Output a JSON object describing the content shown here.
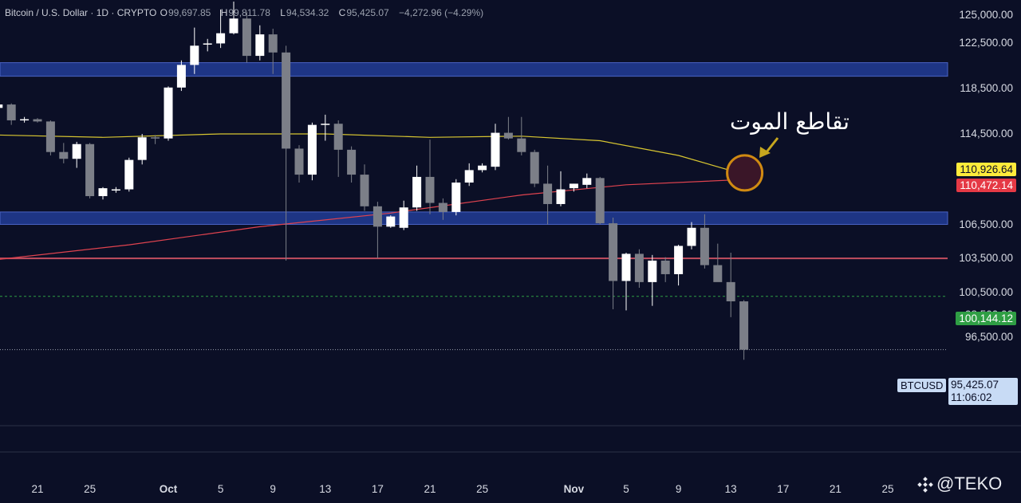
{
  "header": {
    "title": "Bitcoin / U.S. Dollar · 1D · CRYPTO",
    "o_label": "O",
    "o": "99,697.85",
    "h_label": "H",
    "h": "99,811.78",
    "l_label": "L",
    "l": "94,534.32",
    "c_label": "C",
    "c": "95,425.07",
    "change": "−4,272.96 (−4.29%)"
  },
  "annotation": {
    "text": "تقاطع الموت"
  },
  "price_tags": {
    "ma50": "110,926.64",
    "ma200": "110,472.14",
    "level": "100,144.12",
    "symbol": "BTCUSD",
    "last": "95,425.07",
    "countdown": "11:06:02"
  },
  "watermark": {
    "text": "@TEKO",
    "icon": "diamond-logo-icon"
  },
  "colors": {
    "background": "#0b0f26",
    "candle_up": "#ffffff",
    "candle_down": "#7c7f88",
    "zone": "#1e3585",
    "ma50": "#d8c631",
    "ma200": "#e0434f",
    "ma50_tag": "#ffeb3b",
    "ma200_tag": "#e53945",
    "level_tag": "#2f9e44",
    "cross_circle": "#d08a12"
  },
  "chart_data": {
    "type": "candlestick",
    "title": "Bitcoin / U.S. Dollar · 1D · CRYPTO",
    "y_ticks": [
      125000,
      122500,
      118500,
      114500,
      106500,
      103500,
      100500,
      98500,
      96500
    ],
    "y_tick_labels": [
      "125,000.00",
      "122,500.00",
      "118,500.00",
      "114,500.00",
      "106,500.00",
      "103,500.00",
      "100,500.00",
      "98,500.00",
      "96,500.00"
    ],
    "x_ticks": [
      {
        "label": "21",
        "date": "2025-09-21"
      },
      {
        "label": "25",
        "date": "2025-09-25"
      },
      {
        "label": "Oct",
        "date": "2025-10-01"
      },
      {
        "label": "5",
        "date": "2025-10-05"
      },
      {
        "label": "9",
        "date": "2025-10-09"
      },
      {
        "label": "13",
        "date": "2025-10-13"
      },
      {
        "label": "17",
        "date": "2025-10-17"
      },
      {
        "label": "21",
        "date": "2025-10-21"
      },
      {
        "label": "25",
        "date": "2025-10-25"
      },
      {
        "label": "Nov",
        "date": "2025-11-01"
      },
      {
        "label": "5",
        "date": "2025-11-05"
      },
      {
        "label": "9",
        "date": "2025-11-09"
      },
      {
        "label": "13",
        "date": "2025-11-13"
      },
      {
        "label": "17",
        "date": "2025-11-17"
      },
      {
        "label": "21",
        "date": "2025-11-21"
      },
      {
        "label": "25",
        "date": "2025-11-25"
      }
    ],
    "candles": [
      {
        "date": "2025-09-18",
        "o": 116800,
        "h": 117300,
        "l": 116100,
        "c": 117100
      },
      {
        "date": "2025-09-19",
        "o": 117100,
        "h": 117200,
        "l": 115300,
        "c": 115700
      },
      {
        "date": "2025-09-20",
        "o": 115700,
        "h": 116000,
        "l": 115500,
        "c": 115800
      },
      {
        "date": "2025-09-21",
        "o": 115800,
        "h": 115900,
        "l": 115500,
        "c": 115600
      },
      {
        "date": "2025-09-22",
        "o": 115600,
        "h": 115700,
        "l": 112600,
        "c": 112900
      },
      {
        "date": "2025-09-23",
        "o": 112900,
        "h": 113700,
        "l": 111900,
        "c": 112300
      },
      {
        "date": "2025-09-24",
        "o": 112300,
        "h": 113800,
        "l": 111500,
        "c": 113600
      },
      {
        "date": "2025-09-25",
        "o": 113600,
        "h": 113700,
        "l": 108800,
        "c": 109000
      },
      {
        "date": "2025-09-26",
        "o": 109000,
        "h": 109800,
        "l": 108700,
        "c": 109700
      },
      {
        "date": "2025-09-27",
        "o": 109500,
        "h": 109800,
        "l": 109300,
        "c": 109600
      },
      {
        "date": "2025-09-28",
        "o": 109600,
        "h": 112400,
        "l": 109400,
        "c": 112200
      },
      {
        "date": "2025-09-29",
        "o": 112200,
        "h": 114500,
        "l": 111800,
        "c": 114200
      },
      {
        "date": "2025-09-30",
        "o": 114200,
        "h": 114400,
        "l": 113600,
        "c": 114100
      },
      {
        "date": "2025-10-01",
        "o": 114100,
        "h": 118700,
        "l": 113900,
        "c": 118600
      },
      {
        "date": "2025-10-02",
        "o": 118600,
        "h": 121000,
        "l": 118300,
        "c": 120600
      },
      {
        "date": "2025-10-03",
        "o": 120600,
        "h": 123900,
        "l": 119800,
        "c": 122300
      },
      {
        "date": "2025-10-04",
        "o": 122400,
        "h": 122900,
        "l": 121800,
        "c": 122500
      },
      {
        "date": "2025-10-05",
        "o": 122500,
        "h": 125500,
        "l": 122100,
        "c": 123400
      },
      {
        "date": "2025-10-06",
        "o": 123400,
        "h": 126200,
        "l": 123300,
        "c": 124700
      },
      {
        "date": "2025-10-07",
        "o": 124700,
        "h": 125300,
        "l": 120800,
        "c": 121400
      },
      {
        "date": "2025-10-08",
        "o": 121400,
        "h": 124100,
        "l": 121000,
        "c": 123300
      },
      {
        "date": "2025-10-09",
        "o": 123300,
        "h": 123800,
        "l": 119800,
        "c": 121700
      },
      {
        "date": "2025-10-10",
        "o": 121700,
        "h": 122300,
        "l": 103300,
        "c": 113200
      },
      {
        "date": "2025-10-11",
        "o": 113200,
        "h": 113500,
        "l": 110200,
        "c": 110900
      },
      {
        "date": "2025-10-12",
        "o": 110900,
        "h": 115500,
        "l": 110400,
        "c": 115300
      },
      {
        "date": "2025-10-13",
        "o": 115300,
        "h": 116200,
        "l": 113900,
        "c": 115400
      },
      {
        "date": "2025-10-14",
        "o": 115400,
        "h": 115700,
        "l": 110700,
        "c": 113100
      },
      {
        "date": "2025-10-15",
        "o": 113100,
        "h": 113400,
        "l": 110200,
        "c": 110900
      },
      {
        "date": "2025-10-16",
        "o": 110900,
        "h": 111800,
        "l": 107700,
        "c": 108100
      },
      {
        "date": "2025-10-17",
        "o": 108100,
        "h": 108500,
        "l": 103500,
        "c": 106300
      },
      {
        "date": "2025-10-18",
        "o": 106300,
        "h": 107300,
        "l": 106200,
        "c": 107200
      },
      {
        "date": "2025-10-19",
        "o": 106200,
        "h": 108600,
        "l": 106000,
        "c": 108000
      },
      {
        "date": "2025-10-20",
        "o": 108000,
        "h": 111700,
        "l": 107700,
        "c": 110700
      },
      {
        "date": "2025-10-21",
        "o": 110700,
        "h": 114000,
        "l": 107400,
        "c": 108400
      },
      {
        "date": "2025-10-22",
        "o": 108400,
        "h": 108800,
        "l": 106900,
        "c": 107600
      },
      {
        "date": "2025-10-23",
        "o": 107600,
        "h": 110500,
        "l": 107300,
        "c": 110200
      },
      {
        "date": "2025-10-24",
        "o": 110200,
        "h": 111900,
        "l": 109900,
        "c": 111300
      },
      {
        "date": "2025-10-25",
        "o": 111300,
        "h": 111900,
        "l": 111100,
        "c": 111700
      },
      {
        "date": "2025-10-26",
        "o": 111600,
        "h": 115400,
        "l": 111300,
        "c": 114600
      },
      {
        "date": "2025-10-27",
        "o": 114600,
        "h": 116000,
        "l": 114000,
        "c": 114100
      },
      {
        "date": "2025-10-28",
        "o": 114100,
        "h": 116000,
        "l": 112600,
        "c": 112900
      },
      {
        "date": "2025-10-29",
        "o": 112900,
        "h": 113100,
        "l": 109800,
        "c": 110100
      },
      {
        "date": "2025-10-30",
        "o": 110100,
        "h": 111700,
        "l": 106500,
        "c": 108300
      },
      {
        "date": "2025-10-31",
        "o": 108300,
        "h": 111200,
        "l": 108100,
        "c": 109600
      },
      {
        "date": "2025-11-01",
        "o": 109700,
        "h": 110100,
        "l": 109400,
        "c": 110100
      },
      {
        "date": "2025-11-02",
        "o": 110000,
        "h": 111000,
        "l": 109700,
        "c": 110600
      },
      {
        "date": "2025-11-03",
        "o": 110600,
        "h": 110700,
        "l": 106500,
        "c": 106600
      },
      {
        "date": "2025-11-04",
        "o": 106600,
        "h": 107100,
        "l": 99000,
        "c": 101500
      },
      {
        "date": "2025-11-05",
        "o": 101500,
        "h": 104000,
        "l": 98900,
        "c": 103900
      },
      {
        "date": "2025-11-06",
        "o": 103900,
        "h": 104300,
        "l": 100900,
        "c": 101400
      },
      {
        "date": "2025-11-07",
        "o": 101400,
        "h": 103800,
        "l": 99300,
        "c": 103300
      },
      {
        "date": "2025-11-08",
        "o": 103300,
        "h": 103600,
        "l": 101400,
        "c": 102100
      },
      {
        "date": "2025-11-09",
        "o": 102100,
        "h": 104700,
        "l": 101100,
        "c": 104600
      },
      {
        "date": "2025-11-10",
        "o": 104600,
        "h": 106700,
        "l": 104300,
        "c": 106200
      },
      {
        "date": "2025-11-11",
        "o": 106200,
        "h": 107400,
        "l": 102600,
        "c": 102900
      },
      {
        "date": "2025-11-12",
        "o": 102900,
        "h": 104800,
        "l": 101600,
        "c": 101400
      },
      {
        "date": "2025-11-13",
        "o": 101400,
        "h": 104000,
        "l": 98300,
        "c": 99700
      },
      {
        "date": "2025-11-14",
        "o": 99697.85,
        "h": 99811.78,
        "l": 94534.32,
        "c": 95425.07
      }
    ],
    "ma50": [
      {
        "date": "2025-09-18",
        "v": 114400
      },
      {
        "date": "2025-09-26",
        "v": 114200
      },
      {
        "date": "2025-10-05",
        "v": 114500
      },
      {
        "date": "2025-10-13",
        "v": 114500
      },
      {
        "date": "2025-10-21",
        "v": 114200
      },
      {
        "date": "2025-10-28",
        "v": 114300
      },
      {
        "date": "2025-11-03",
        "v": 113900
      },
      {
        "date": "2025-11-09",
        "v": 112600
      },
      {
        "date": "2025-11-14",
        "v": 110926.64
      }
    ],
    "ma200": [
      {
        "date": "2025-09-18",
        "v": 103400
      },
      {
        "date": "2025-09-28",
        "v": 104700
      },
      {
        "date": "2025-10-08",
        "v": 106300
      },
      {
        "date": "2025-10-18",
        "v": 107500
      },
      {
        "date": "2025-10-28",
        "v": 109100
      },
      {
        "date": "2025-11-05",
        "v": 110000
      },
      {
        "date": "2025-11-14",
        "v": 110472.14
      }
    ],
    "zones": [
      {
        "low": 119600,
        "high": 120800
      },
      {
        "low": 106500,
        "high": 107600
      }
    ],
    "h_lines": [
      {
        "value": 103500,
        "style": "solid",
        "color": "#c24e5f"
      },
      {
        "value": 100144.12,
        "style": "dashed",
        "color": "#2f9e44"
      },
      {
        "value": 95425.07,
        "style": "dotted",
        "color": "#9aa0ad"
      }
    ],
    "annotation": {
      "text": "تقاطع الموت",
      "date": "2025-11-14",
      "value": 110700
    }
  }
}
